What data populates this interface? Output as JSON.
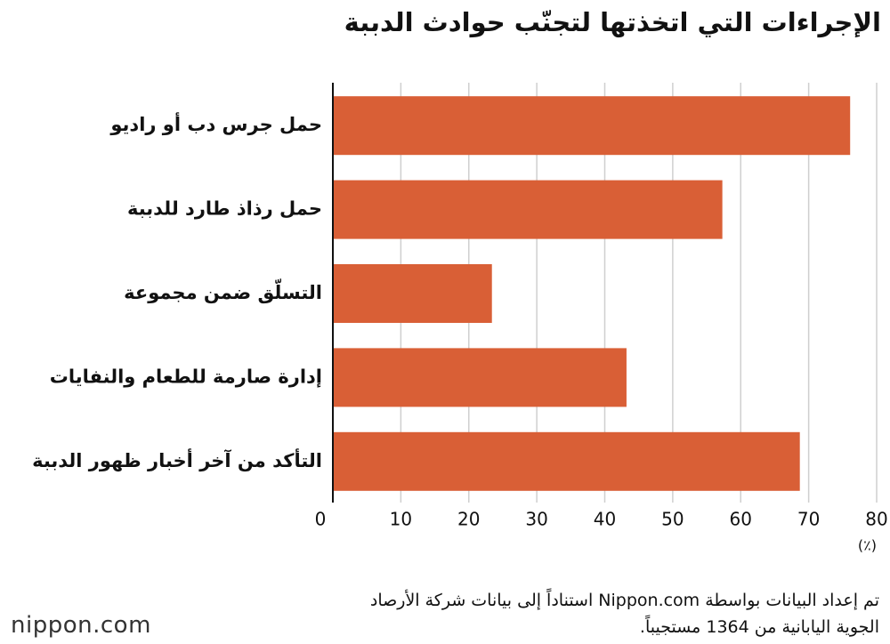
{
  "chart_data": {
    "type": "bar",
    "orientation": "horizontal",
    "title": "الإجراءات التي اتخذتها لتجنّب حوادث الدببة",
    "categories": [
      "حمل جرس دب أو راديو",
      "حمل رذاذ طارد للدببة",
      "التسلّق ضمن مجموعة",
      "إدارة صارمة للطعام والنفايات",
      "التأكد من آخر أخبار ظهور الدببة"
    ],
    "values": [
      76.1,
      57.3,
      23.4,
      43.2,
      68.7
    ],
    "color": "#d95f36",
    "xlim": [
      0,
      80
    ],
    "xticks": [
      0,
      10,
      20,
      30,
      40,
      50,
      60,
      70,
      80
    ],
    "x_unit": "(٪)",
    "grid": true,
    "note": [
      "تم إعداد البيانات بواسطة Nippon.com استناداً إلى بيانات شركة الأرصاد",
      "الجوية اليابانية من 1364 مستجيباً."
    ],
    "logo": "nippon.com"
  }
}
